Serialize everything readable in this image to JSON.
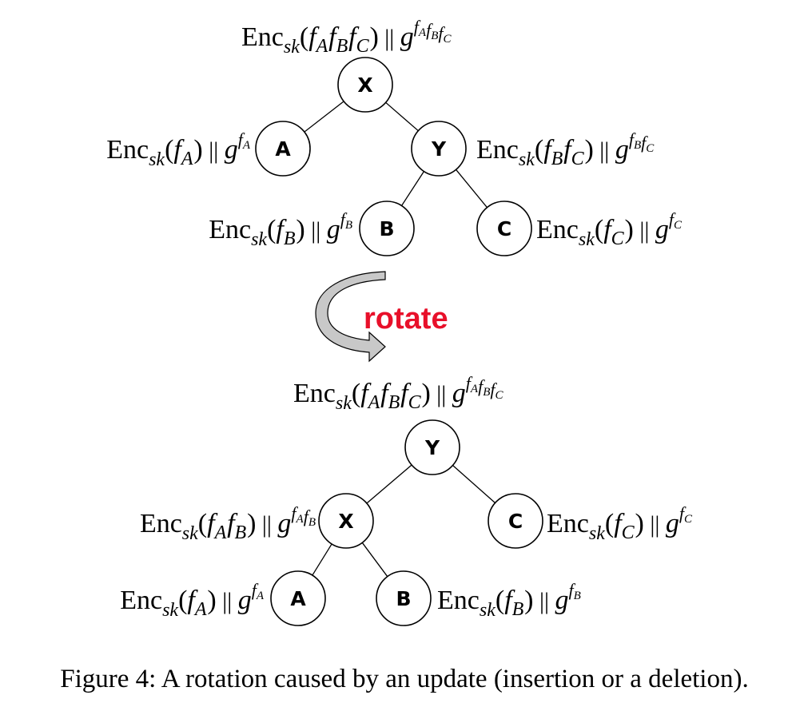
{
  "colors": {
    "rotate_text": "#e8102a",
    "arrow_fill": "#c8c8c8",
    "stroke": "#000000"
  },
  "before_tree": {
    "nodes": {
      "X": {
        "label": "X",
        "annotation": {
          "func": "Enc",
          "sub": "sk",
          "arg": [
            "A",
            "B",
            "C"
          ],
          "sep": "||",
          "base": "g"
        }
      },
      "A": {
        "label": "A",
        "annotation": {
          "func": "Enc",
          "sub": "sk",
          "arg": [
            "A"
          ],
          "sep": "||",
          "base": "g"
        }
      },
      "Y": {
        "label": "Y",
        "annotation": {
          "func": "Enc",
          "sub": "sk",
          "arg": [
            "B",
            "C"
          ],
          "sep": "||",
          "base": "g"
        }
      },
      "B": {
        "label": "B",
        "annotation": {
          "func": "Enc",
          "sub": "sk",
          "arg": [
            "B"
          ],
          "sep": "||",
          "base": "g"
        }
      },
      "C": {
        "label": "C",
        "annotation": {
          "func": "Enc",
          "sub": "sk",
          "arg": [
            "C"
          ],
          "sep": "||",
          "base": "g"
        }
      }
    },
    "edges": [
      [
        "X",
        "A"
      ],
      [
        "X",
        "Y"
      ],
      [
        "Y",
        "B"
      ],
      [
        "Y",
        "C"
      ]
    ]
  },
  "rotate": {
    "label": "rotate",
    "icon": "curved-arrow-icon"
  },
  "after_tree": {
    "nodes": {
      "Y": {
        "label": "Y",
        "annotation": {
          "func": "Enc",
          "sub": "sk",
          "arg": [
            "A",
            "B",
            "C"
          ],
          "sep": "||",
          "base": "g"
        }
      },
      "X": {
        "label": "X",
        "annotation": {
          "func": "Enc",
          "sub": "sk",
          "arg": [
            "A",
            "B"
          ],
          "sep": "||",
          "base": "g"
        }
      },
      "C": {
        "label": "C",
        "annotation": {
          "func": "Enc",
          "sub": "sk",
          "arg": [
            "C"
          ],
          "sep": "||",
          "base": "g"
        }
      },
      "A": {
        "label": "A",
        "annotation": {
          "func": "Enc",
          "sub": "sk",
          "arg": [
            "A"
          ],
          "sep": "||",
          "base": "g"
        }
      },
      "B": {
        "label": "B",
        "annotation": {
          "func": "Enc",
          "sub": "sk",
          "arg": [
            "B"
          ],
          "sep": "||",
          "base": "g"
        }
      }
    },
    "edges": [
      [
        "Y",
        "X"
      ],
      [
        "Y",
        "C"
      ],
      [
        "X",
        "A"
      ],
      [
        "X",
        "B"
      ]
    ]
  },
  "caption": "Figure 4: A rotation caused by an update (insertion or a deletion)."
}
